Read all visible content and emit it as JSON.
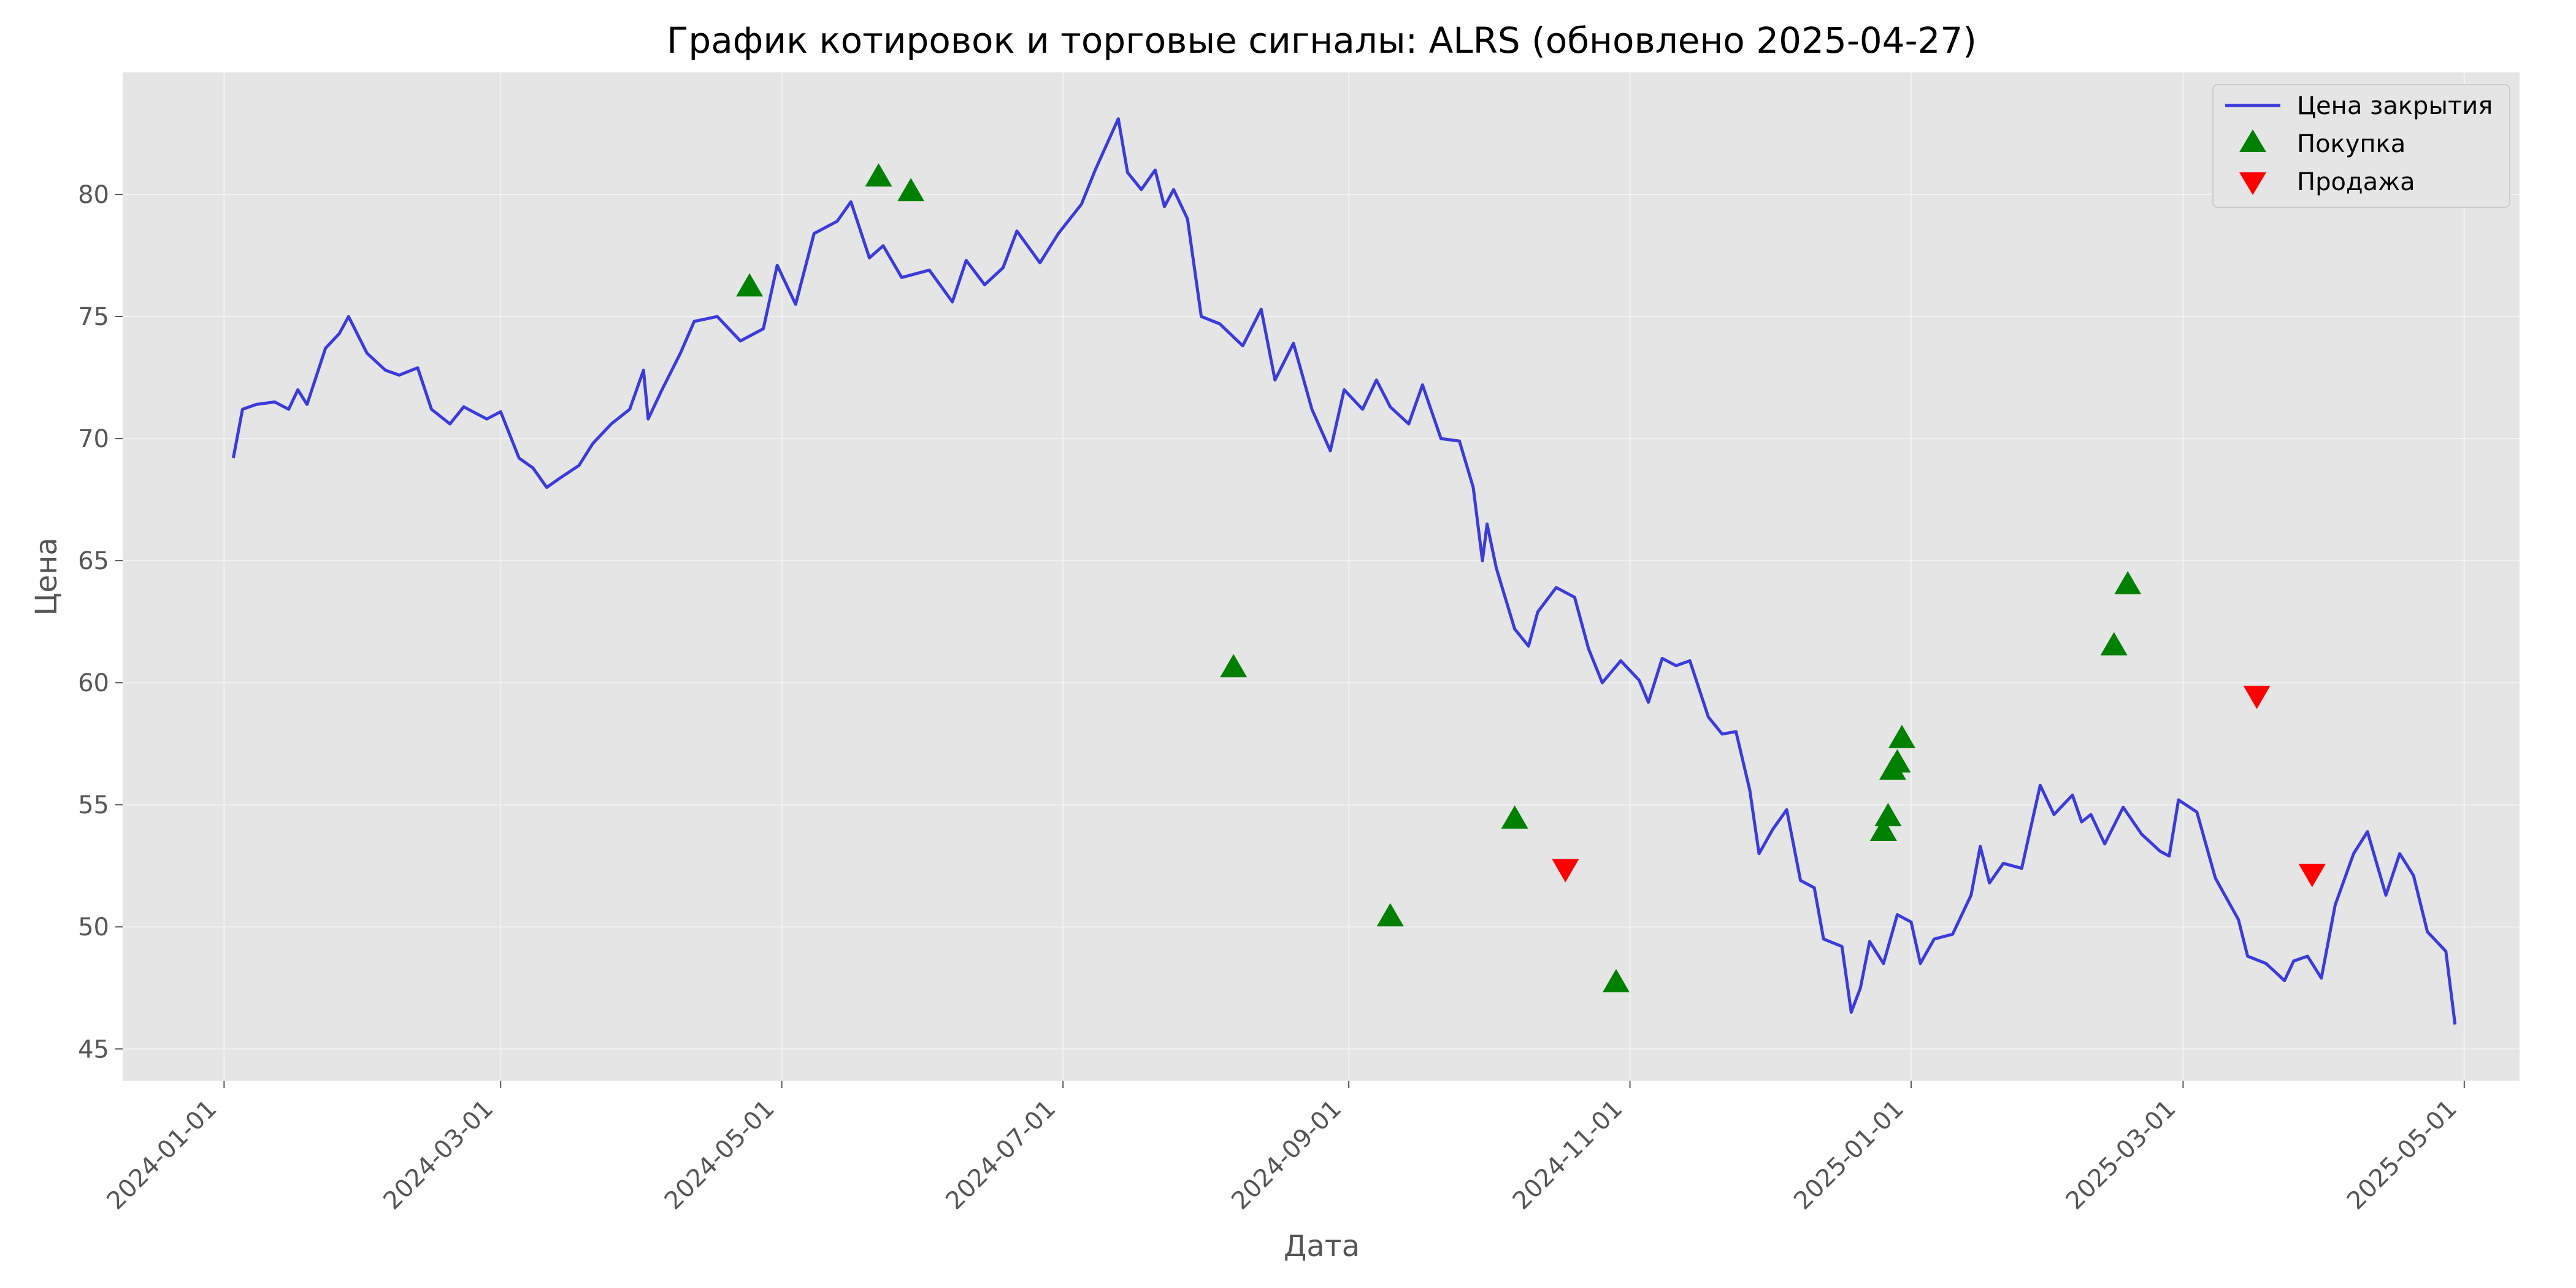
{
  "chart_data": {
    "type": "line",
    "title": "График котировок и торговые сигналы: ALRS (обновлено 2025-04-27)",
    "xlabel": "Дата",
    "ylabel": "Цена",
    "xlim": [
      "2023-12-10",
      "2025-05-13"
    ],
    "ylim": [
      43.7,
      85.0
    ],
    "grid": true,
    "legend_position": "top-right",
    "x_ticks": [
      "2024-01-01",
      "2024-03-01",
      "2024-05-01",
      "2024-07-01",
      "2024-09-01",
      "2024-11-01",
      "2025-01-01",
      "2025-03-01",
      "2025-05-01"
    ],
    "y_ticks": [
      45,
      50,
      55,
      60,
      65,
      70,
      75,
      80
    ],
    "colors": {
      "price": "#3b3bdc",
      "buy": "#008000",
      "sell": "#ff0000",
      "plot_bg": "#e5e5e5",
      "grid": "#f2f2f2",
      "text": "#555555"
    },
    "series": [
      {
        "name": "Цена закрытия",
        "points": [
          [
            "2024-01-03",
            69.2
          ],
          [
            "2024-01-05",
            71.2
          ],
          [
            "2024-01-08",
            71.4
          ],
          [
            "2024-01-12",
            71.5
          ],
          [
            "2024-01-15",
            71.2
          ],
          [
            "2024-01-17",
            72.0
          ],
          [
            "2024-01-19",
            71.4
          ],
          [
            "2024-01-23",
            73.7
          ],
          [
            "2024-01-26",
            74.3
          ],
          [
            "2024-01-28",
            75.0
          ],
          [
            "2024-02-01",
            73.5
          ],
          [
            "2024-02-05",
            72.8
          ],
          [
            "2024-02-08",
            72.6
          ],
          [
            "2024-02-12",
            72.9
          ],
          [
            "2024-02-15",
            71.2
          ],
          [
            "2024-02-19",
            70.6
          ],
          [
            "2024-02-22",
            71.3
          ],
          [
            "2024-02-27",
            70.8
          ],
          [
            "2024-03-01",
            71.1
          ],
          [
            "2024-03-05",
            69.2
          ],
          [
            "2024-03-08",
            68.8
          ],
          [
            "2024-03-11",
            68.0
          ],
          [
            "2024-03-14",
            68.4
          ],
          [
            "2024-03-18",
            68.9
          ],
          [
            "2024-03-21",
            69.8
          ],
          [
            "2024-03-25",
            70.6
          ],
          [
            "2024-03-29",
            71.2
          ],
          [
            "2024-04-01",
            72.8
          ],
          [
            "2024-04-02",
            70.8
          ],
          [
            "2024-04-05",
            72.0
          ],
          [
            "2024-04-09",
            73.5
          ],
          [
            "2024-04-12",
            74.8
          ],
          [
            "2024-04-17",
            75.0
          ],
          [
            "2024-04-22",
            74.0
          ],
          [
            "2024-04-27",
            74.5
          ],
          [
            "2024-04-30",
            77.1
          ],
          [
            "2024-05-04",
            75.5
          ],
          [
            "2024-05-08",
            78.4
          ],
          [
            "2024-05-13",
            78.9
          ],
          [
            "2024-05-16",
            79.7
          ],
          [
            "2024-05-20",
            77.4
          ],
          [
            "2024-05-23",
            77.9
          ],
          [
            "2024-05-27",
            76.6
          ],
          [
            "2024-06-02",
            76.9
          ],
          [
            "2024-06-07",
            75.6
          ],
          [
            "2024-06-10",
            77.3
          ],
          [
            "2024-06-14",
            76.3
          ],
          [
            "2024-06-18",
            77.0
          ],
          [
            "2024-06-21",
            78.5
          ],
          [
            "2024-06-26",
            77.2
          ],
          [
            "2024-06-30",
            78.4
          ],
          [
            "2024-07-05",
            79.6
          ],
          [
            "2024-07-08",
            81.0
          ],
          [
            "2024-07-13",
            83.1
          ],
          [
            "2024-07-15",
            80.9
          ],
          [
            "2024-07-18",
            80.2
          ],
          [
            "2024-07-21",
            81.0
          ],
          [
            "2024-07-23",
            79.5
          ],
          [
            "2024-07-25",
            80.2
          ],
          [
            "2024-07-28",
            79.0
          ],
          [
            "2024-07-31",
            75.0
          ],
          [
            "2024-08-04",
            74.7
          ],
          [
            "2024-08-09",
            73.8
          ],
          [
            "2024-08-13",
            75.3
          ],
          [
            "2024-08-16",
            72.4
          ],
          [
            "2024-08-20",
            73.9
          ],
          [
            "2024-08-24",
            71.2
          ],
          [
            "2024-08-28",
            69.5
          ],
          [
            "2024-08-31",
            72.0
          ],
          [
            "2024-09-04",
            71.2
          ],
          [
            "2024-09-07",
            72.4
          ],
          [
            "2024-09-10",
            71.3
          ],
          [
            "2024-09-14",
            70.6
          ],
          [
            "2024-09-17",
            72.2
          ],
          [
            "2024-09-21",
            70.0
          ],
          [
            "2024-09-25",
            69.9
          ],
          [
            "2024-09-28",
            68.0
          ],
          [
            "2024-09-30",
            65.0
          ],
          [
            "2024-10-01",
            66.5
          ],
          [
            "2024-10-03",
            64.7
          ],
          [
            "2024-10-07",
            62.2
          ],
          [
            "2024-10-10",
            61.5
          ],
          [
            "2024-10-12",
            62.9
          ],
          [
            "2024-10-16",
            63.9
          ],
          [
            "2024-10-20",
            63.5
          ],
          [
            "2024-10-23",
            61.4
          ],
          [
            "2024-10-26",
            60.0
          ],
          [
            "2024-10-30",
            60.9
          ],
          [
            "2024-11-03",
            60.1
          ],
          [
            "2024-11-05",
            59.2
          ],
          [
            "2024-11-08",
            61.0
          ],
          [
            "2024-11-11",
            60.7
          ],
          [
            "2024-11-14",
            60.9
          ],
          [
            "2024-11-18",
            58.6
          ],
          [
            "2024-11-21",
            57.9
          ],
          [
            "2024-11-24",
            58.0
          ],
          [
            "2024-11-27",
            55.6
          ],
          [
            "2024-11-29",
            53.0
          ],
          [
            "2024-12-02",
            54.0
          ],
          [
            "2024-12-05",
            54.8
          ],
          [
            "2024-12-08",
            51.9
          ],
          [
            "2024-12-11",
            51.6
          ],
          [
            "2024-12-13",
            49.5
          ],
          [
            "2024-12-17",
            49.2
          ],
          [
            "2024-12-19",
            46.5
          ],
          [
            "2024-12-21",
            47.5
          ],
          [
            "2024-12-23",
            49.4
          ],
          [
            "2024-12-26",
            48.5
          ],
          [
            "2024-12-29",
            50.5
          ],
          [
            "2025-01-01",
            50.2
          ],
          [
            "2025-01-03",
            48.5
          ],
          [
            "2025-01-06",
            49.5
          ],
          [
            "2025-01-10",
            49.7
          ],
          [
            "2025-01-14",
            51.3
          ],
          [
            "2025-01-16",
            53.3
          ],
          [
            "2025-01-18",
            51.8
          ],
          [
            "2025-01-21",
            52.6
          ],
          [
            "2025-01-25",
            52.4
          ],
          [
            "2025-01-29",
            55.8
          ],
          [
            "2025-02-01",
            54.6
          ],
          [
            "2025-02-05",
            55.4
          ],
          [
            "2025-02-07",
            54.3
          ],
          [
            "2025-02-09",
            54.6
          ],
          [
            "2025-02-12",
            53.4
          ],
          [
            "2025-02-16",
            54.9
          ],
          [
            "2025-02-20",
            53.8
          ],
          [
            "2025-02-24",
            53.1
          ],
          [
            "2025-02-26",
            52.9
          ],
          [
            "2025-02-28",
            55.2
          ],
          [
            "2025-03-04",
            54.7
          ],
          [
            "2025-03-08",
            52.0
          ],
          [
            "2025-03-13",
            50.3
          ],
          [
            "2025-03-15",
            48.8
          ],
          [
            "2025-03-19",
            48.5
          ],
          [
            "2025-03-23",
            47.8
          ],
          [
            "2025-03-25",
            48.6
          ],
          [
            "2025-03-28",
            48.8
          ],
          [
            "2025-03-31",
            47.9
          ],
          [
            "2025-04-03",
            50.9
          ],
          [
            "2025-04-07",
            53.0
          ],
          [
            "2025-04-10",
            53.9
          ],
          [
            "2025-04-14",
            51.3
          ],
          [
            "2025-04-17",
            53.0
          ],
          [
            "2025-04-20",
            52.1
          ],
          [
            "2025-04-23",
            49.8
          ],
          [
            "2025-04-27",
            49.0
          ],
          [
            "2025-04-29",
            46.0
          ]
        ]
      }
    ],
    "legend": [
      "Цена закрытия",
      "Покупка",
      "Продажа"
    ],
    "buy_signals": [
      [
        "2024-04-24",
        76.3
      ],
      [
        "2024-05-22",
        80.8
      ],
      [
        "2024-05-29",
        80.2
      ],
      [
        "2024-08-07",
        60.7
      ],
      [
        "2024-09-10",
        50.5
      ],
      [
        "2024-10-07",
        54.5
      ],
      [
        "2024-10-29",
        47.8
      ],
      [
        "2024-12-26",
        54.0
      ],
      [
        "2024-12-27",
        54.6
      ],
      [
        "2024-12-28",
        56.5
      ],
      [
        "2024-12-29",
        56.8
      ],
      [
        "2024-12-30",
        57.8
      ],
      [
        "2025-02-14",
        61.6
      ],
      [
        "2025-02-17",
        64.1
      ]
    ],
    "sell_signals": [
      [
        "2024-10-18",
        52.3
      ],
      [
        "2025-03-17",
        59.4
      ],
      [
        "2025-03-29",
        52.1
      ]
    ]
  }
}
